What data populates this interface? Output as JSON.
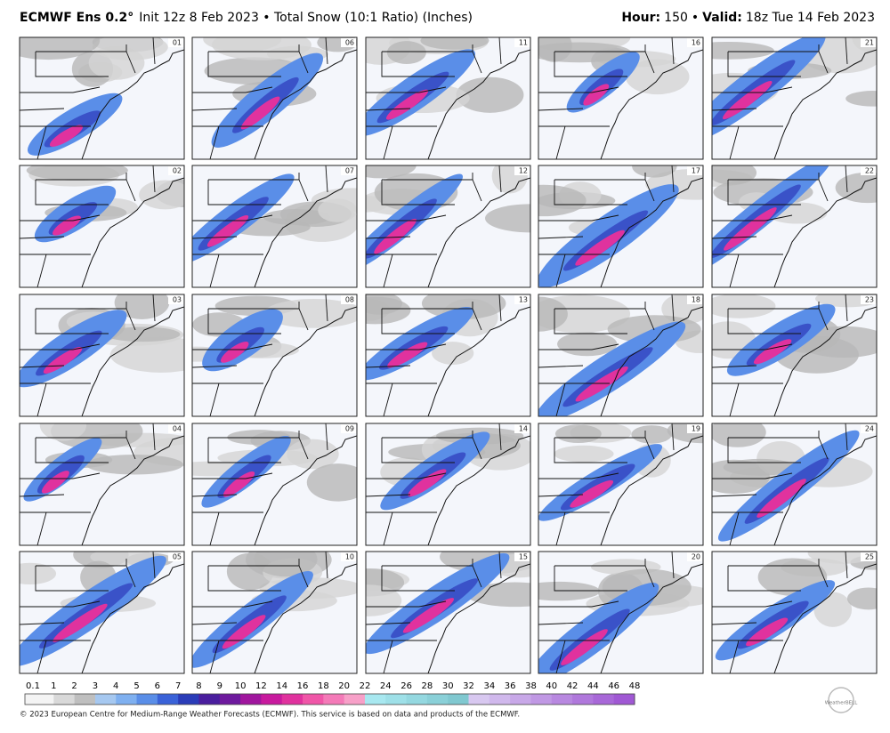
{
  "header": {
    "model": "ECMWF Ens 0.2°",
    "subtitle": "Init 12z 8 Feb 2023 • Total Snow (10:1 Ratio) (Inches)",
    "hour_label": "Hour:",
    "hour": "150",
    "valid_label": "Valid:",
    "valid": "18z Tue 14 Feb 2023"
  },
  "panels": [
    "01",
    "02",
    "03",
    "04",
    "05",
    "06",
    "07",
    "08",
    "09",
    "10",
    "11",
    "12",
    "13",
    "14",
    "15",
    "16",
    "17",
    "18",
    "19",
    "20",
    "21",
    "22",
    "23",
    "24",
    "25"
  ],
  "colorbar": {
    "ticks": [
      0.1,
      1,
      2,
      3,
      4,
      5,
      6,
      7,
      8,
      9,
      10,
      12,
      14,
      16,
      18,
      20,
      22,
      24,
      26,
      28,
      30,
      32,
      34,
      36,
      38,
      40,
      42,
      44,
      46,
      48
    ],
    "colors": [
      "#f4f4f4",
      "#d9d9d9",
      "#bfbfbf",
      "#a6c8f0",
      "#7fb0f0",
      "#5a8ee8",
      "#3a62d8",
      "#2a3cb8",
      "#4a1e9e",
      "#6e1a9e",
      "#a0169e",
      "#c81a9e",
      "#e0329e",
      "#f056a8",
      "#f47ab8",
      "#f7a0c8",
      "#a8e8f0",
      "#9ee0e8",
      "#94d8e0",
      "#8ad0d8",
      "#80c8d0",
      "#d8c8f0",
      "#d0b8ec",
      "#c8a8e8",
      "#c098e4",
      "#b888e0",
      "#b078dc",
      "#a868d8",
      "#a058d4"
    ]
  },
  "footer": "© 2023 European Centre for Medium-Range Weather Forecasts (ECMWF). This service is based on data and products of the ECMWF.",
  "logo": "WeatherBELL"
}
